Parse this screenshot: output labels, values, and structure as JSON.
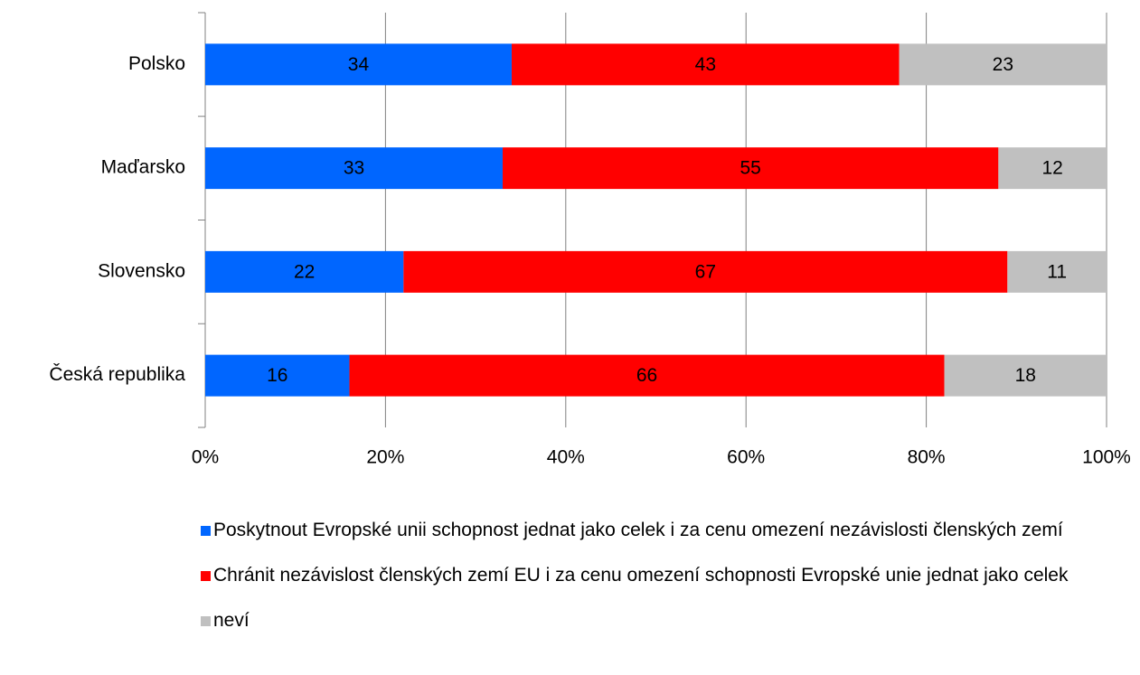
{
  "chart_data": {
    "type": "stacked-barh",
    "categories": [
      "Polsko",
      "Maďarsko",
      "Slovensko",
      "Česká republika"
    ],
    "series": [
      {
        "name": "Poskytnout Evropské unii schopnost jednat jako celek i za cenu omezení nezávislosti členských zemí",
        "color": "#0066ff",
        "values": [
          34,
          33,
          22,
          16
        ]
      },
      {
        "name": "Chránit nezávislost členských zemí EU i za cenu omezení schopnosti Evropské unie jednat jako celek",
        "color": "#ff0000",
        "values": [
          43,
          55,
          67,
          66
        ]
      },
      {
        "name": "neví",
        "color": "#c0c0c0",
        "values": [
          23,
          12,
          11,
          18
        ]
      }
    ],
    "xlim": [
      0,
      100
    ],
    "xticks": [
      {
        "value": 0,
        "label": "0%"
      },
      {
        "value": 20,
        "label": "20%"
      },
      {
        "value": 40,
        "label": "40%"
      },
      {
        "value": 60,
        "label": "60%"
      },
      {
        "value": 80,
        "label": "80%"
      },
      {
        "value": 100,
        "label": "100%"
      }
    ],
    "grid": true,
    "legend": "bottom"
  }
}
